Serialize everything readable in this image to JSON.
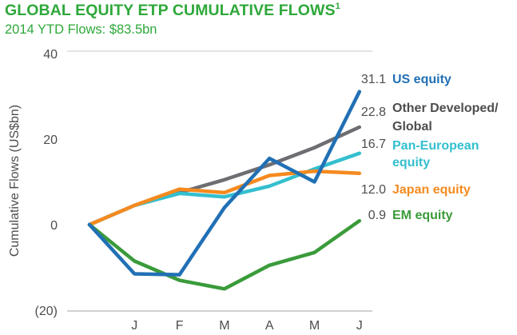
{
  "header": {
    "title": "GLOBAL EQUITY ETP CUMULATIVE FLOWS",
    "title_sup": "1",
    "subtitle": "2014 YTD Flows: $83.5bn"
  },
  "chart_data": {
    "type": "line",
    "ylabel": "Cumulative Flows (US$bn)",
    "ylim": [
      -20,
      40
    ],
    "y_ticks": [
      {
        "value": 40,
        "label": "40"
      },
      {
        "value": 20,
        "label": "20"
      },
      {
        "value": 0,
        "label": "0"
      },
      {
        "value": -20,
        "label": "(20)"
      }
    ],
    "categories": [
      "",
      "J",
      "F",
      "M",
      "A",
      "M",
      "J"
    ],
    "series": [
      {
        "name": "Other Developed/ Global",
        "color": "#6d6e71",
        "values": [
          0,
          4.5,
          7.5,
          10.5,
          14,
          18,
          22.8
        ],
        "end_label": "22.8"
      },
      {
        "name": "Pan-European equity",
        "color": "#33bfcf",
        "values": [
          0,
          4.5,
          7.3,
          6.5,
          9,
          13,
          16.7
        ],
        "end_label": "16.7"
      },
      {
        "name": "Japan equity",
        "color": "#f58a1f",
        "values": [
          0,
          4.5,
          8.3,
          7.5,
          11.5,
          12.5,
          12.0
        ],
        "end_label": "12.0"
      },
      {
        "name": "EM equity",
        "color": "#3a9b3a",
        "values": [
          0,
          -8.5,
          -13,
          -15,
          -9.5,
          -6.5,
          0.9
        ],
        "end_label": "0.9"
      },
      {
        "name": "US equity",
        "color": "#2170b5",
        "values": [
          0,
          -11.5,
          -11.7,
          4,
          15.5,
          10,
          31.1
        ],
        "end_label": "31.1"
      }
    ],
    "grid": false
  }
}
